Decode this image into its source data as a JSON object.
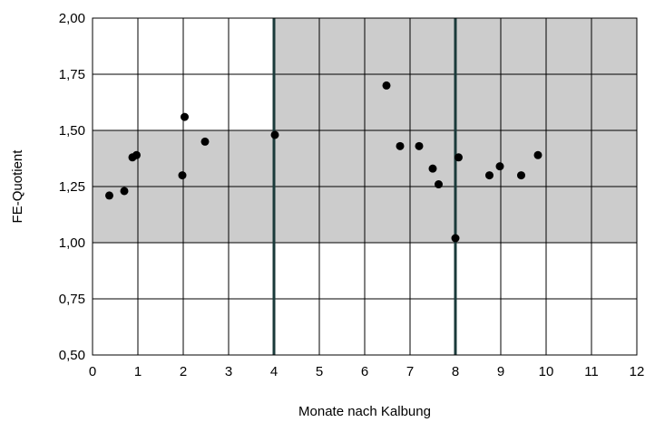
{
  "chart_data": {
    "type": "scatter",
    "title": "",
    "xlabel": "Monate nach Kalbung",
    "ylabel": "FE-Quotient",
    "xlim": [
      0,
      12
    ],
    "ylim": [
      0.5,
      2.0
    ],
    "x_ticks": [
      0,
      1,
      2,
      3,
      4,
      5,
      6,
      7,
      8,
      9,
      10,
      11,
      12
    ],
    "x_tick_labels": [
      "0",
      "1",
      "2",
      "3",
      "4",
      "5",
      "6",
      "7",
      "8",
      "9",
      "10",
      "11",
      "12"
    ],
    "y_ticks": [
      0.5,
      0.75,
      1.0,
      1.25,
      1.5,
      1.75,
      2.0
    ],
    "y_tick_labels": [
      "0,50",
      "0,75",
      "1,00",
      "1,25",
      "1,50",
      "1,75",
      "2,00"
    ],
    "grid": true,
    "shaded_regions": [
      {
        "x": [
          0,
          4
        ],
        "y": [
          1.0,
          1.5
        ]
      },
      {
        "x": [
          4,
          8
        ],
        "y": [
          1.0,
          2.0
        ]
      },
      {
        "x": [
          8,
          12
        ],
        "y": [
          1.0,
          2.0
        ]
      }
    ],
    "vertical_markers": [
      4,
      8
    ],
    "points": [
      {
        "x": 0.37,
        "y": 1.21
      },
      {
        "x": 0.7,
        "y": 1.23
      },
      {
        "x": 0.88,
        "y": 1.38
      },
      {
        "x": 0.97,
        "y": 1.39
      },
      {
        "x": 1.98,
        "y": 1.3
      },
      {
        "x": 2.03,
        "y": 1.56
      },
      {
        "x": 2.48,
        "y": 1.45
      },
      {
        "x": 4.02,
        "y": 1.48
      },
      {
        "x": 6.48,
        "y": 1.7
      },
      {
        "x": 6.78,
        "y": 1.43
      },
      {
        "x": 7.2,
        "y": 1.43
      },
      {
        "x": 7.5,
        "y": 1.33
      },
      {
        "x": 7.63,
        "y": 1.26
      },
      {
        "x": 8.0,
        "y": 1.02
      },
      {
        "x": 8.07,
        "y": 1.38
      },
      {
        "x": 8.75,
        "y": 1.3
      },
      {
        "x": 8.98,
        "y": 1.34
      },
      {
        "x": 9.45,
        "y": 1.3
      },
      {
        "x": 9.82,
        "y": 1.39
      }
    ]
  },
  "colors": {
    "background": "#ffffff",
    "shade": "#cccccc",
    "grid": "#000000",
    "marker_line": "#1a3a3a",
    "point": "#000000"
  }
}
